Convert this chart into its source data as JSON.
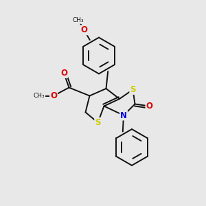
{
  "background_color": "#e8e8e8",
  "bond_color": "#111111",
  "atom_colors": {
    "S": "#cccc00",
    "N": "#0000dd",
    "O": "#dd0000",
    "C": "#111111"
  },
  "figsize": [
    3.0,
    3.0
  ],
  "dpi": 100
}
